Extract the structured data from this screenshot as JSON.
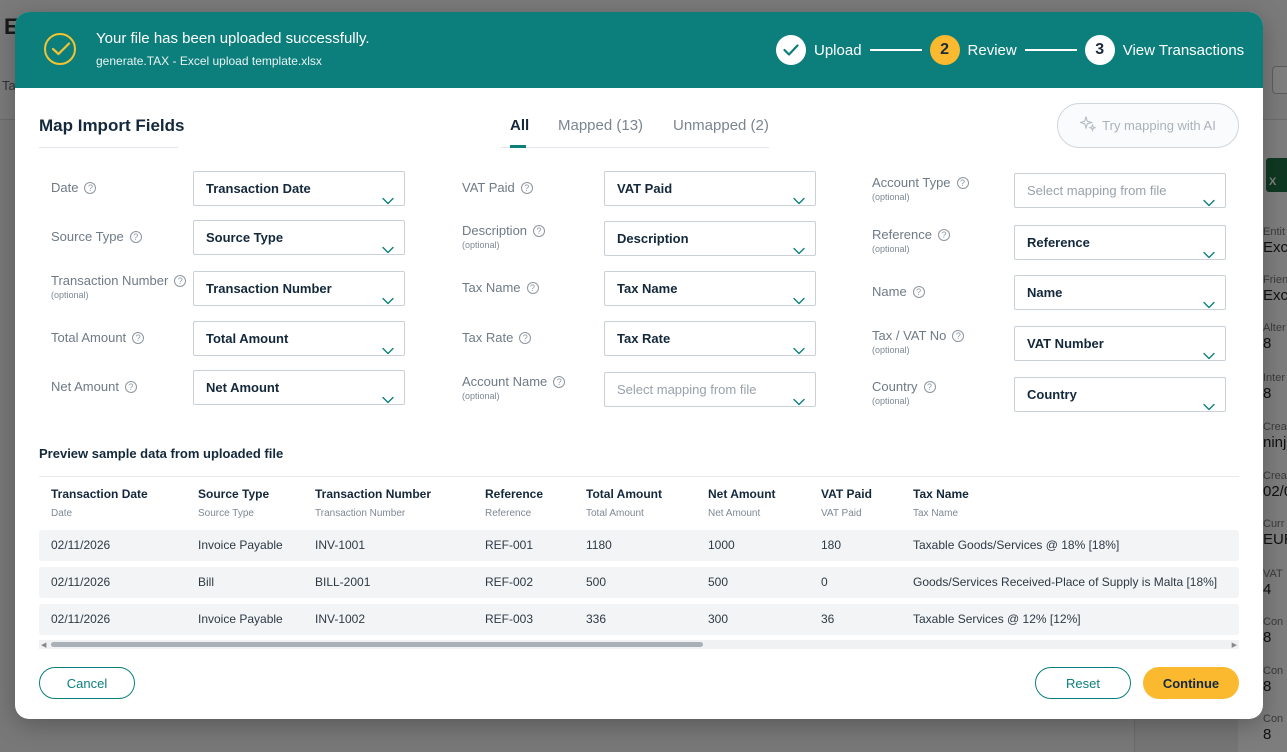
{
  "background": {
    "title_fragment": "E",
    "tab_fragment": "Ta",
    "side_panel": [
      {
        "key": "Entit",
        "value": "Exc"
      },
      {
        "key": "Frien",
        "value": "Exc"
      },
      {
        "key": "Alter",
        "value": "8"
      },
      {
        "key": "Inter",
        "value": "8"
      },
      {
        "key": "Crea",
        "value": "ninj"
      },
      {
        "key": "Crea",
        "value": "02/0"
      },
      {
        "key": "Curr",
        "value": "EUR"
      },
      {
        "key": "VAT",
        "value": "4"
      },
      {
        "key": "Con",
        "value": "8"
      },
      {
        "key": "Con",
        "value": "8"
      },
      {
        "key": "Con",
        "value": "8"
      }
    ]
  },
  "banner": {
    "message": "Your file has been uploaded successfully.",
    "file_name": "generate.TAX - Excel upload template.xlsx",
    "steps": [
      {
        "number": "",
        "label": "Upload",
        "state": "done"
      },
      {
        "number": "2",
        "label": "Review",
        "state": "active"
      },
      {
        "number": "3",
        "label": "View Transactions",
        "state": "pending"
      }
    ]
  },
  "mapping": {
    "title": "Map Import Fields",
    "tabs": [
      {
        "label": "All",
        "active": true
      },
      {
        "label": "Mapped (13)",
        "active": false
      },
      {
        "label": "Unmapped (2)",
        "active": false
      }
    ],
    "ai_button": "Try mapping with AI",
    "optional_text": "(optional)",
    "columns": [
      [
        {
          "label": "Date",
          "optional": false,
          "value": "Transaction Date",
          "placeholder": false
        },
        {
          "label": "Source Type",
          "optional": false,
          "value": "Source Type",
          "placeholder": false
        },
        {
          "label": "Transaction Number",
          "optional": true,
          "value": "Transaction Number",
          "placeholder": false
        },
        {
          "label": "Total Amount",
          "optional": false,
          "value": "Total Amount",
          "placeholder": false
        },
        {
          "label": "Net Amount",
          "optional": false,
          "value": "Net Amount",
          "placeholder": false
        }
      ],
      [
        {
          "label": "VAT Paid",
          "optional": false,
          "value": "VAT Paid",
          "placeholder": false
        },
        {
          "label": "Description",
          "optional": true,
          "value": "Description",
          "placeholder": false
        },
        {
          "label": "Tax Name",
          "optional": false,
          "value": "Tax Name",
          "placeholder": false
        },
        {
          "label": "Tax Rate",
          "optional": false,
          "value": "Tax Rate",
          "placeholder": false
        },
        {
          "label": "Account Name",
          "optional": true,
          "value": "Select mapping from file",
          "placeholder": true
        }
      ],
      [
        {
          "label": "Account Type",
          "optional": true,
          "value": "Select mapping from file",
          "placeholder": true
        },
        {
          "label": "Reference",
          "optional": true,
          "value": "Reference",
          "placeholder": false
        },
        {
          "label": "Name",
          "optional": false,
          "value": "Name",
          "placeholder": false
        },
        {
          "label": "Tax / VAT No",
          "optional": true,
          "value": "VAT Number",
          "placeholder": false
        },
        {
          "label": "Country",
          "optional": true,
          "value": "Country",
          "placeholder": false
        }
      ]
    ]
  },
  "preview": {
    "title": "Preview sample data from uploaded file",
    "columns": [
      {
        "header": "Transaction Date",
        "source": "Date"
      },
      {
        "header": "Source Type",
        "source": "Source Type"
      },
      {
        "header": "Transaction Number",
        "source": "Transaction Number"
      },
      {
        "header": "Reference",
        "source": "Reference"
      },
      {
        "header": "Total Amount",
        "source": "Total Amount"
      },
      {
        "header": "Net Amount",
        "source": "Net Amount"
      },
      {
        "header": "VAT Paid",
        "source": "VAT Paid"
      },
      {
        "header": "Tax Name",
        "source": "Tax Name"
      }
    ],
    "rows": [
      [
        "02/11/2026",
        "Invoice Payable",
        "INV-1001",
        "REF-001",
        "1180",
        "1000",
        "180",
        "Taxable Goods/Services @ 18% [18%]"
      ],
      [
        "02/11/2026",
        "Bill",
        "BILL-2001",
        "REF-002",
        "500",
        "500",
        "0",
        "Goods/Services Received-Place of Supply is Malta [18%]"
      ],
      [
        "02/11/2026",
        "Invoice Payable",
        "INV-1002",
        "REF-003",
        "336",
        "300",
        "36",
        "Taxable Services @ 12% [12%]"
      ]
    ]
  },
  "footer": {
    "cancel": "Cancel",
    "reset": "Reset",
    "continue": "Continue"
  },
  "colors": {
    "brand_teal": "#0c7f7c",
    "accent_yellow": "#fbb92f"
  }
}
